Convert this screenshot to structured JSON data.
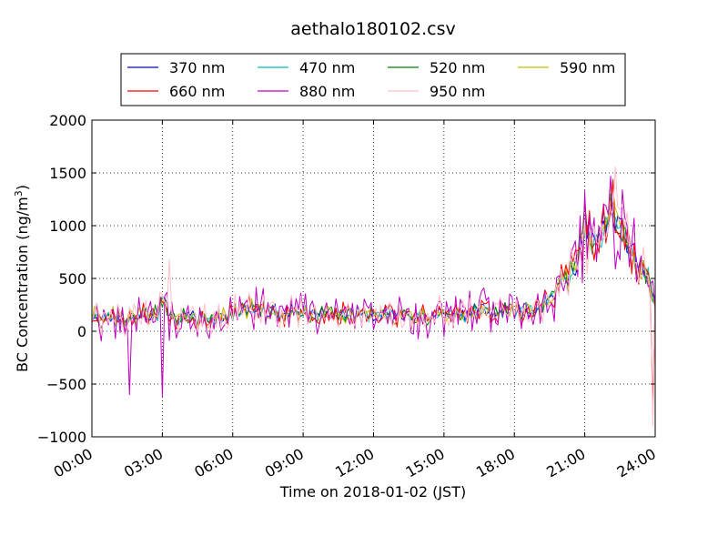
{
  "chart_data": {
    "type": "line",
    "title": "aethalo180102.csv",
    "xlabel": "Time on 2018-01-02 (JST)",
    "ylabel": "BC Concentration (ng/m",
    "ylabel_sup": "3",
    "ylabel_close": ")",
    "xlim": [
      0,
      24
    ],
    "ylim": [
      -1000,
      2000
    ],
    "x_ticks": [
      0,
      3,
      6,
      9,
      12,
      15,
      18,
      21,
      24
    ],
    "x_tick_labels": [
      "00:00",
      "03:00",
      "06:00",
      "09:00",
      "12:00",
      "15:00",
      "18:00",
      "21:00",
      "24:00"
    ],
    "y_ticks": [
      -1000,
      -500,
      0,
      500,
      1000,
      1500,
      2000
    ],
    "y_tick_labels": [
      "−1000",
      "−500",
      "0",
      "500",
      "1000",
      "1500",
      "2000"
    ],
    "grid": true,
    "legend_position": "top",
    "x_step_hours": 0.1,
    "base_profile": [
      [
        0,
        120
      ],
      [
        1,
        120
      ],
      [
        2,
        125
      ],
      [
        2.8,
        150
      ],
      [
        3.0,
        300
      ],
      [
        3.3,
        140
      ],
      [
        4,
        110
      ],
      [
        6,
        150
      ],
      [
        6.5,
        210
      ],
      [
        7.5,
        180
      ],
      [
        9,
        160
      ],
      [
        12,
        150
      ],
      [
        15,
        160
      ],
      [
        18,
        190
      ],
      [
        19.2,
        220
      ],
      [
        19.8,
        420
      ],
      [
        20.5,
        560
      ],
      [
        21.0,
        960
      ],
      [
        21.5,
        820
      ],
      [
        22.2,
        1150
      ],
      [
        22.7,
        880
      ],
      [
        23.4,
        560
      ],
      [
        23.8,
        480
      ],
      [
        24,
        300
      ]
    ],
    "series": [
      {
        "name": "370 nm",
        "color": "#0000ff",
        "seed": 11,
        "amp": 70
      },
      {
        "name": "470 nm",
        "color": "#00bfbf",
        "seed": 23,
        "amp": 75
      },
      {
        "name": "520 nm",
        "color": "#008000",
        "seed": 37,
        "amp": 80
      },
      {
        "name": "590 nm",
        "color": "#bfbf00",
        "seed": 41,
        "amp": 90
      },
      {
        "name": "660 nm",
        "color": "#ff0000",
        "seed": 53,
        "amp": 110
      },
      {
        "name": "880 nm",
        "color": "#bf00bf",
        "seed": 67,
        "amp": 190
      },
      {
        "name": "950 nm",
        "color": "#ffc0cb",
        "seed": 79,
        "amp": 140
      }
    ]
  }
}
